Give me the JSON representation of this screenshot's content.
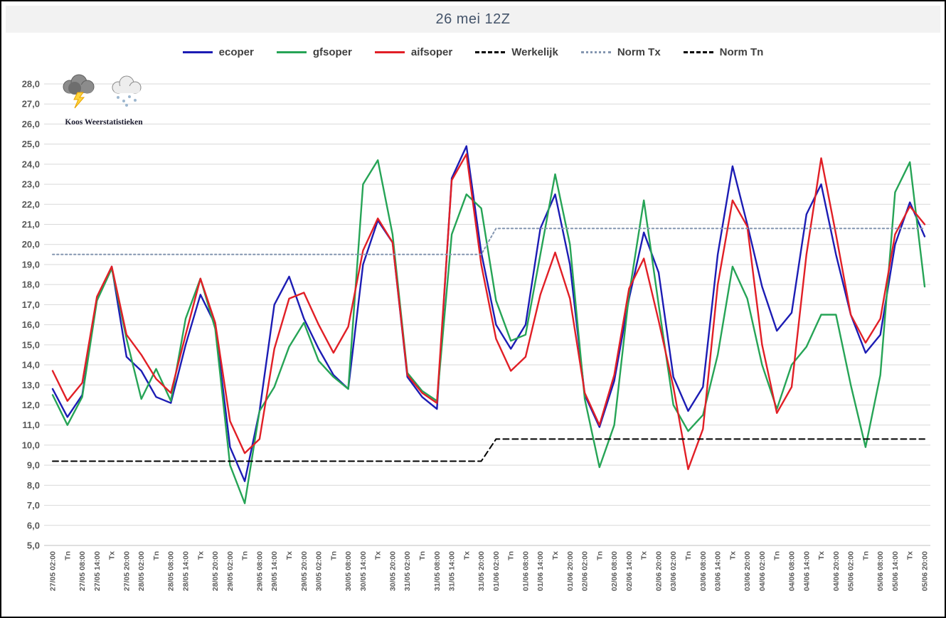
{
  "logo": {
    "caption": "Koos Weerstatistieken",
    "icons": [
      "storm-cloud-icon",
      "snow-cloud-icon"
    ]
  },
  "chart_data": {
    "type": "line",
    "title": "26 mei 12Z",
    "grid": true,
    "legend_position": "top",
    "x_labels": [
      "27/05 02:00",
      "Tn",
      "27/05 08:00",
      "27/05 14:00",
      "Tx",
      "27/05 20:00",
      "28/05 02:00",
      "Tn",
      "28/05 08:00",
      "28/05 14:00",
      "Tx",
      "28/05 20:00",
      "29/05 02:00",
      "Tn",
      "29/05 08:00",
      "29/05 14:00",
      "Tx",
      "29/05 20:00",
      "30/05 02:00",
      "Tn",
      "30/05 08:00",
      "30/05 14:00",
      "Tx",
      "30/05 20:00",
      "31/05 02:00",
      "Tn",
      "31/05 08:00",
      "31/05 14:00",
      "Tx",
      "31/05 20:00",
      "01/06 02:00",
      "Tn",
      "01/06 08:00",
      "01/06 14:00",
      "Tx",
      "01/06 20:00",
      "02/06 02:00",
      "Tn",
      "02/06 08:00",
      "02/06 14:00",
      "Tx",
      "02/06 20:00",
      "03/06 02:00",
      "Tn",
      "03/06 08:00",
      "03/06 14:00",
      "Tx",
      "03/06 20:00",
      "04/06 02:00",
      "Tn",
      "04/06 08:00",
      "04/06 14:00",
      "Tx",
      "04/06 20:00",
      "05/06 02:00",
      "Tn",
      "05/06 08:00",
      "05/06 14:00",
      "Tx",
      "05/06 20:00"
    ],
    "y_axis": {
      "min": 5,
      "max": 28,
      "step": 1,
      "tick_labels": [
        "28,0",
        "27,0",
        "26,0",
        "25,0",
        "24,0",
        "23,0",
        "22,0",
        "21,0",
        "20,0",
        "19,0",
        "18,0",
        "17,0",
        "16,0",
        "15,0",
        "14,0",
        "13,0",
        "12,0",
        "11,0",
        "10,0",
        "9,0",
        "8,0",
        "7,0",
        "6,0",
        "5,0"
      ]
    },
    "series": [
      {
        "name": "ecoper",
        "color": "#1c1cb4",
        "style": "solid",
        "values": [
          12.8,
          11.4,
          12.5,
          17.3,
          18.9,
          14.4,
          13.7,
          12.4,
          12.1,
          15.0,
          17.5,
          16.0,
          9.9,
          8.2,
          11.7,
          17.0,
          18.4,
          16.3,
          14.8,
          13.5,
          12.8,
          19.0,
          21.2,
          20.1,
          13.4,
          12.4,
          11.8,
          23.3,
          24.9,
          19.6,
          16.0,
          14.8,
          16.0,
          20.8,
          22.5,
          19.0,
          12.5,
          10.9,
          13.2,
          17.3,
          20.6,
          18.6,
          13.4,
          11.7,
          12.9,
          19.5,
          23.9,
          21.0,
          17.9,
          15.7,
          16.6,
          21.5,
          23.0,
          19.5,
          16.5,
          14.6,
          15.5,
          20.0,
          22.1,
          20.4
        ]
      },
      {
        "name": "gfsoper",
        "color": "#26a456",
        "style": "solid",
        "values": [
          12.5,
          11.0,
          12.4,
          17.2,
          18.8,
          15.3,
          12.3,
          13.8,
          12.2,
          16.3,
          18.3,
          15.8,
          9.0,
          7.1,
          11.7,
          12.9,
          14.9,
          16.1,
          14.2,
          13.4,
          12.8,
          23.0,
          24.2,
          20.5,
          13.6,
          12.7,
          12.2,
          20.5,
          22.5,
          21.8,
          17.2,
          15.2,
          15.5,
          19.5,
          23.5,
          20.0,
          12.3,
          8.9,
          11.0,
          17.5,
          22.2,
          17.0,
          12.0,
          10.7,
          11.5,
          14.5,
          18.9,
          17.3,
          14.0,
          11.8,
          14.0,
          14.9,
          16.5,
          16.5,
          13.0,
          9.9,
          13.5,
          22.6,
          24.1,
          17.9
        ]
      },
      {
        "name": "aifsoper",
        "color": "#e11f26",
        "style": "solid",
        "values": [
          13.7,
          12.2,
          13.1,
          17.4,
          18.9,
          15.5,
          14.5,
          13.3,
          12.6,
          15.5,
          18.3,
          16.1,
          11.2,
          9.6,
          10.3,
          14.8,
          17.3,
          17.6,
          16.0,
          14.6,
          15.9,
          19.7,
          21.3,
          20.1,
          13.5,
          12.6,
          12.1,
          23.2,
          24.5,
          19.0,
          15.3,
          13.7,
          14.4,
          17.5,
          19.6,
          17.3,
          12.6,
          11.0,
          13.5,
          17.8,
          19.3,
          16.2,
          12.9,
          8.8,
          10.8,
          18.0,
          22.2,
          20.9,
          15.0,
          11.6,
          12.9,
          19.5,
          24.3,
          20.5,
          16.5,
          15.1,
          16.3,
          20.5,
          21.9,
          21.0
        ]
      },
      {
        "name": "Werkelijk",
        "color": "#000000",
        "style": "dashed",
        "values": []
      },
      {
        "name": "Norm Tx",
        "color": "#8496b0",
        "style": "dotted",
        "values": [
          19.5,
          19.5,
          19.5,
          19.5,
          19.5,
          19.5,
          19.5,
          19.5,
          19.5,
          19.5,
          19.5,
          19.5,
          19.5,
          19.5,
          19.5,
          19.5,
          19.5,
          19.5,
          19.5,
          19.5,
          19.5,
          19.5,
          19.5,
          19.5,
          19.5,
          19.5,
          19.5,
          19.5,
          19.5,
          19.5,
          20.8,
          20.8,
          20.8,
          20.8,
          20.8,
          20.8,
          20.8,
          20.8,
          20.8,
          20.8,
          20.8,
          20.8,
          20.8,
          20.8,
          20.8,
          20.8,
          20.8,
          20.8,
          20.8,
          20.8,
          20.8,
          20.8,
          20.8,
          20.8,
          20.8,
          20.8,
          20.8,
          20.8,
          20.8,
          20.8
        ]
      },
      {
        "name": "Norm Tn",
        "color": "#000000",
        "style": "dashed",
        "values": [
          9.2,
          9.2,
          9.2,
          9.2,
          9.2,
          9.2,
          9.2,
          9.2,
          9.2,
          9.2,
          9.2,
          9.2,
          9.2,
          9.2,
          9.2,
          9.2,
          9.2,
          9.2,
          9.2,
          9.2,
          9.2,
          9.2,
          9.2,
          9.2,
          9.2,
          9.2,
          9.2,
          9.2,
          9.2,
          9.2,
          10.3,
          10.3,
          10.3,
          10.3,
          10.3,
          10.3,
          10.3,
          10.3,
          10.3,
          10.3,
          10.3,
          10.3,
          10.3,
          10.3,
          10.3,
          10.3,
          10.3,
          10.3,
          10.3,
          10.3,
          10.3,
          10.3,
          10.3,
          10.3,
          10.3,
          10.3,
          10.3,
          10.3,
          10.3,
          10.3
        ]
      }
    ]
  }
}
